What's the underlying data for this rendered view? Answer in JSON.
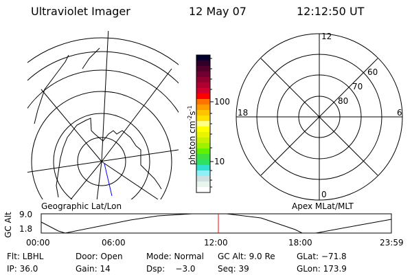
{
  "header": {
    "instrument": "Ultraviolet Imager",
    "date": "12 May 07",
    "time": "12:12:50 UT"
  },
  "colorbar": {
    "label": "photon cm",
    "exp1": "-2",
    "unit2": "s",
    "exp2": "-1",
    "ticks": [
      "100",
      "10"
    ],
    "colors": [
      "#000030",
      "#300028",
      "#50002a",
      "#700030",
      "#900030",
      "#b00030",
      "#d00030",
      "#ff0000",
      "#ff7400",
      "#ff9c00",
      "#ffc400",
      "#ffe000",
      "#ffff88",
      "#ffff00",
      "#e8f400",
      "#c8f000",
      "#a0f000",
      "#60f000",
      "#40e040",
      "#30e060",
      "#30e0d0",
      "#90f0f8",
      "#d0e0e0",
      "#e8f4ee",
      "#ffffff"
    ]
  },
  "polar": {
    "mlt_labels": [
      "12",
      "6",
      "0",
      "18"
    ],
    "lat_labels": [
      "80",
      "70",
      "60"
    ]
  },
  "panels": {
    "left_label": "Geographic Lat/Lon",
    "right_label": "Apex MLat/MLT"
  },
  "altplot": {
    "ylabel": "GC Alt",
    "yticks": [
      "9.0",
      "1.8"
    ],
    "xticks": [
      "00:00",
      "06:00",
      "12:00",
      "18:00",
      "23:59"
    ],
    "current_time_color": "#ff0000"
  },
  "info": {
    "flt": "Flt: LBHL",
    "door": "Door: Open",
    "mode": "Mode: Normal",
    "gcalt": "GC Alt: 9.0 Re",
    "glat": "GLat: −71.8",
    "ip": "IP: 36.0",
    "gain": "Gain: 14",
    "dsp": "Dsp:    −3.0",
    "seq": "Seq: 39",
    "glon": "GLon: 173.9"
  }
}
